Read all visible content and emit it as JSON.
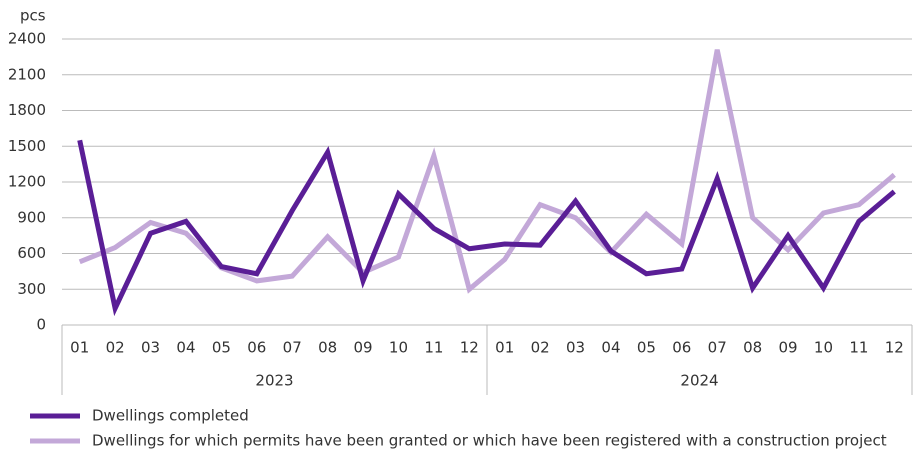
{
  "chart_data": {
    "type": "line",
    "y_unit_label": "pcs",
    "categories": [
      "01",
      "02",
      "03",
      "04",
      "05",
      "06",
      "07",
      "08",
      "09",
      "10",
      "11",
      "12",
      "01",
      "02",
      "03",
      "04",
      "05",
      "06",
      "07",
      "08",
      "09",
      "10",
      "11",
      "12"
    ],
    "x_groups": [
      "2023",
      "2024"
    ],
    "series": [
      {
        "name": "Dwellings completed",
        "color": "#5a1e96",
        "values": [
          1550,
          140,
          770,
          870,
          490,
          430,
          960,
          1450,
          370,
          1100,
          810,
          640,
          680,
          670,
          1040,
          620,
          430,
          470,
          1230,
          310,
          750,
          310,
          870,
          1120
        ]
      },
      {
        "name": "Dwellings for which permits have been granted or which have been registered with a construction project",
        "color": "#c3a8d8",
        "values": [
          530,
          650,
          860,
          770,
          480,
          370,
          410,
          740,
          440,
          570,
          1420,
          300,
          550,
          1010,
          900,
          610,
          930,
          680,
          2310,
          900,
          630,
          940,
          1010,
          1260
        ]
      }
    ],
    "ylim": [
      0,
      2400
    ],
    "yticks": [
      0,
      300,
      600,
      900,
      1200,
      1500,
      1800,
      2100,
      2400
    ],
    "grid": true
  }
}
